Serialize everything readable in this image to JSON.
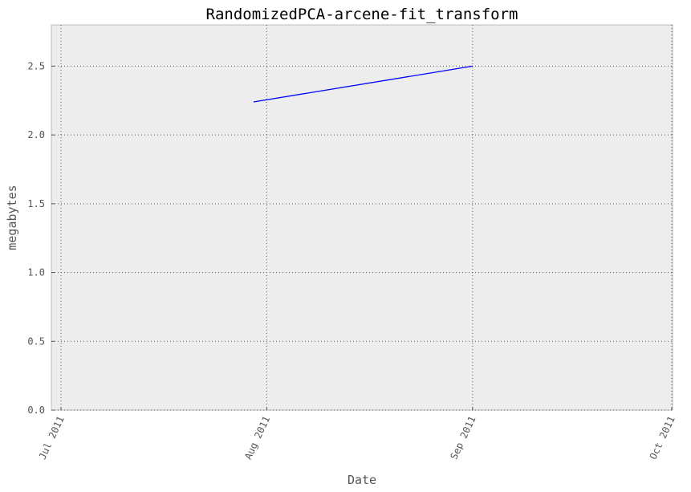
{
  "chart_data": {
    "type": "line",
    "title": "RandomizedPCA-arcene-fit_transform",
    "xlabel": "Date",
    "ylabel": "megabytes",
    "x_ticks": [
      "2011-07-01",
      "2011-08-01",
      "2011-09-01",
      "2011-10-01"
    ],
    "x_tick_labels": [
      "Jul 2011",
      "Aug 2011",
      "Sep 2011",
      "Oct 2011"
    ],
    "xlim": [
      "2011-07-01",
      "2011-10-01"
    ],
    "y_ticks": [
      0.0,
      0.5,
      1.0,
      1.5,
      2.0,
      2.5
    ],
    "y_tick_labels": [
      "0.0",
      "0.5",
      "1.0",
      "1.5",
      "2.0",
      "2.5"
    ],
    "ylim": [
      0,
      2.8
    ],
    "grid": true,
    "series": [
      {
        "color": "#0000ff",
        "x": [
          "2011-07-30",
          "2011-09-01"
        ],
        "y": [
          2.24,
          2.5
        ]
      }
    ]
  }
}
